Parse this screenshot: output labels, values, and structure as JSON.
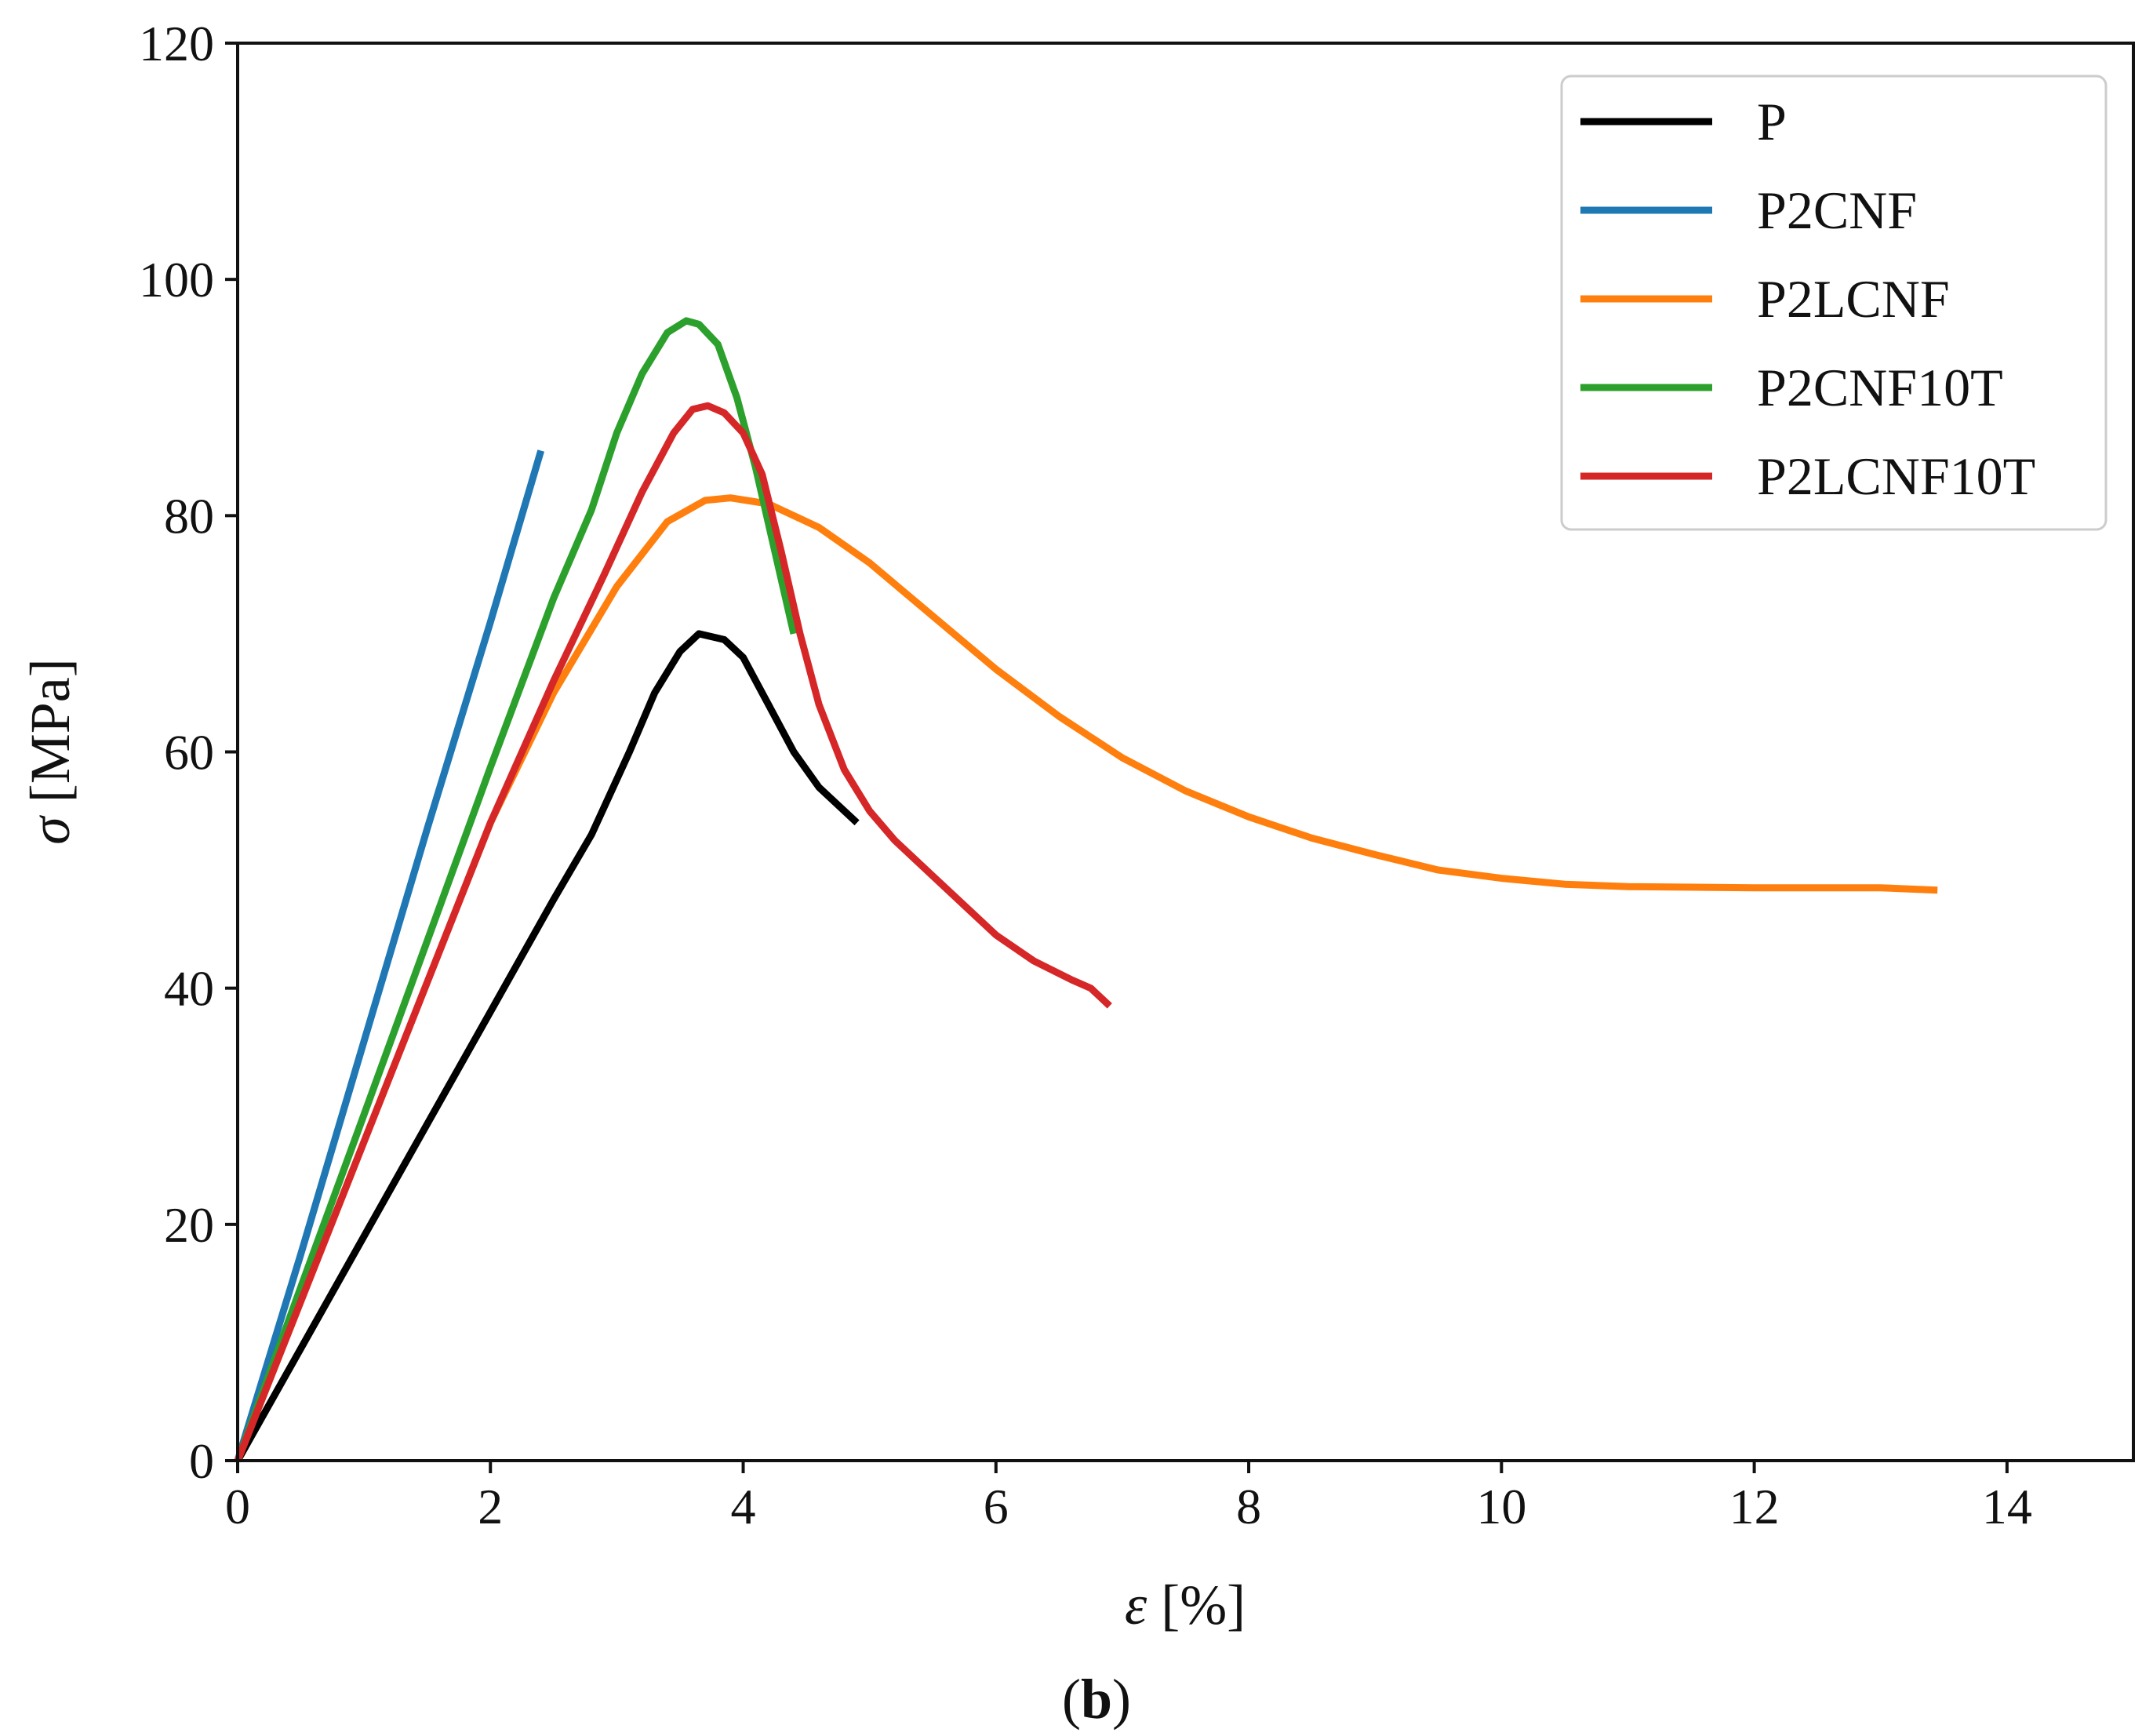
{
  "chart_data": {
    "type": "line",
    "title": "",
    "panel_label": {
      "open": "(",
      "letter": "b",
      "close": ")"
    },
    "xlabel": {
      "symbol": "ε",
      "unit": " [%]"
    },
    "ylabel": {
      "symbol": "σ",
      "unit": " [MPa]"
    },
    "xlim": [
      0,
      15
    ],
    "ylim": [
      0,
      120
    ],
    "xticks": [
      0,
      2,
      4,
      6,
      8,
      10,
      12,
      14
    ],
    "yticks": [
      0,
      20,
      40,
      60,
      80,
      100,
      120
    ],
    "grid": false,
    "legend_position": "top-right",
    "series": [
      {
        "name": "P",
        "color": "#000000",
        "points": [
          [
            0,
            0
          ],
          [
            0.5,
            9.5
          ],
          [
            1,
            19
          ],
          [
            1.5,
            28.5
          ],
          [
            2,
            38
          ],
          [
            2.5,
            47.5
          ],
          [
            2.8,
            53
          ],
          [
            3.1,
            60
          ],
          [
            3.3,
            65
          ],
          [
            3.5,
            68.5
          ],
          [
            3.65,
            70
          ],
          [
            3.85,
            69.5
          ],
          [
            4.0,
            68
          ],
          [
            4.2,
            64
          ],
          [
            4.4,
            60
          ],
          [
            4.6,
            57
          ],
          [
            4.9,
            54
          ]
        ]
      },
      {
        "name": "P2CNF",
        "color": "#1f77b4",
        "points": [
          [
            0,
            0
          ],
          [
            0.5,
            17.5
          ],
          [
            1,
            35.5
          ],
          [
            1.5,
            53.5
          ],
          [
            2,
            71
          ],
          [
            2.4,
            85.5
          ]
        ]
      },
      {
        "name": "P2LCNF",
        "color": "#ff7f0e",
        "points": [
          [
            0,
            0
          ],
          [
            0.5,
            13.5
          ],
          [
            1,
            27
          ],
          [
            1.5,
            40.5
          ],
          [
            2,
            54
          ],
          [
            2.5,
            65
          ],
          [
            3,
            74
          ],
          [
            3.4,
            79.5
          ],
          [
            3.7,
            81.3
          ],
          [
            3.9,
            81.5
          ],
          [
            4.2,
            81
          ],
          [
            4.6,
            79
          ],
          [
            5.0,
            76
          ],
          [
            5.5,
            71.5
          ],
          [
            6.0,
            67
          ],
          [
            6.5,
            63
          ],
          [
            7,
            59.5
          ],
          [
            7.5,
            56.7
          ],
          [
            8,
            54.5
          ],
          [
            8.5,
            52.7
          ],
          [
            9,
            51.3
          ],
          [
            9.5,
            50
          ],
          [
            10,
            49.3
          ],
          [
            10.5,
            48.8
          ],
          [
            11,
            48.6
          ],
          [
            12,
            48.5
          ],
          [
            13,
            48.5
          ],
          [
            13.45,
            48.3
          ]
        ]
      },
      {
        "name": "P2CNF10T",
        "color": "#2ca02c",
        "points": [
          [
            0,
            0
          ],
          [
            0.5,
            14.7
          ],
          [
            1,
            29.3
          ],
          [
            1.5,
            44
          ],
          [
            2,
            58.7
          ],
          [
            2.5,
            73
          ],
          [
            2.8,
            80.5
          ],
          [
            3.0,
            87
          ],
          [
            3.2,
            92
          ],
          [
            3.4,
            95.5
          ],
          [
            3.55,
            96.5
          ],
          [
            3.65,
            96.2
          ],
          [
            3.8,
            94.5
          ],
          [
            3.95,
            90
          ],
          [
            4.1,
            84
          ],
          [
            4.25,
            77
          ],
          [
            4.4,
            70
          ]
        ]
      },
      {
        "name": "P2LCNF10T",
        "color": "#d62728",
        "points": [
          [
            0,
            0
          ],
          [
            0.5,
            13.5
          ],
          [
            1,
            27
          ],
          [
            1.5,
            40.5
          ],
          [
            2,
            54
          ],
          [
            2.5,
            66
          ],
          [
            2.9,
            75
          ],
          [
            3.2,
            82
          ],
          [
            3.45,
            87
          ],
          [
            3.6,
            89
          ],
          [
            3.72,
            89.3
          ],
          [
            3.85,
            88.7
          ],
          [
            4.0,
            87
          ],
          [
            4.15,
            83.5
          ],
          [
            4.3,
            77
          ],
          [
            4.45,
            70
          ],
          [
            4.6,
            64
          ],
          [
            4.8,
            58.5
          ],
          [
            5.0,
            55
          ],
          [
            5.2,
            52.5
          ],
          [
            5.5,
            49.5
          ],
          [
            5.8,
            46.5
          ],
          [
            6.0,
            44.5
          ],
          [
            6.3,
            42.3
          ],
          [
            6.6,
            40.7
          ],
          [
            6.75,
            40
          ],
          [
            6.9,
            38.5
          ]
        ]
      }
    ]
  }
}
